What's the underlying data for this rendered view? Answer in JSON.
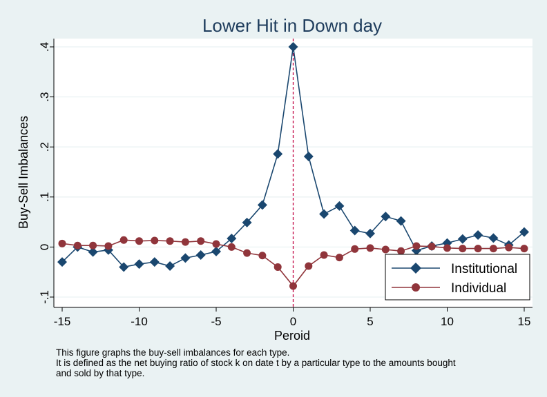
{
  "chart_data": {
    "type": "line",
    "title": "Lower Hit in Down day",
    "xlabel": "Peroid",
    "ylabel": "Buy-Sell Imbalances",
    "xlim": [
      -15,
      15
    ],
    "ylim": [
      -0.1,
      0.4
    ],
    "xticks": [
      -15,
      -10,
      -5,
      0,
      5,
      10,
      15
    ],
    "xtick_labels": [
      "-15",
      "-10",
      "-5",
      "0",
      "5",
      "10",
      "15"
    ],
    "yticks": [
      -0.1,
      0,
      0.1,
      0.2,
      0.3,
      0.4
    ],
    "ytick_labels": [
      "-.1",
      "0",
      ".1",
      ".2",
      ".3",
      ".4"
    ],
    "grid": true,
    "reference_line_x": 0,
    "legend_position": "bottom-right",
    "x": [
      -15,
      -14,
      -13,
      -12,
      -11,
      -10,
      -9,
      -8,
      -7,
      -6,
      -5,
      -4,
      -3,
      -2,
      -1,
      0,
      1,
      2,
      3,
      4,
      5,
      6,
      7,
      8,
      9,
      10,
      11,
      12,
      13,
      14,
      15
    ],
    "series": [
      {
        "name": "Institutional",
        "color": "#1a476f",
        "marker": "diamond",
        "values": [
          -0.03,
          0,
          -0.01,
          -0.006,
          -0.04,
          -0.034,
          -0.03,
          -0.038,
          -0.022,
          -0.016,
          -0.009,
          0.017,
          0.049,
          0.084,
          0.186,
          0.4,
          0.181,
          0.066,
          0.082,
          0.033,
          0.027,
          0.061,
          0.052,
          -0.007,
          0.002,
          0.008,
          0.016,
          0.024,
          0.018,
          0.004,
          0.03
        ]
      },
      {
        "name": "Individual",
        "color": "#90353b",
        "marker": "circle",
        "values": [
          0.007,
          0.003,
          0.003,
          0.002,
          0.014,
          0.012,
          0.013,
          0.012,
          0.01,
          0.012,
          0.006,
          0,
          -0.012,
          -0.017,
          -0.04,
          -0.078,
          -0.038,
          -0.016,
          -0.021,
          -0.004,
          -0.002,
          -0.005,
          -0.008,
          0.002,
          0.001,
          -0.002,
          -0.003,
          -0.003,
          -0.003,
          -0.001,
          -0.003
        ]
      }
    ]
  },
  "note": {
    "line1": "This figure graphs the buy-sell imbalances for each type.",
    "line2": "It is defined as the net buying ratio of stock k on date t by a particular type to the amounts bought",
    "line3": "and sold by that type."
  }
}
